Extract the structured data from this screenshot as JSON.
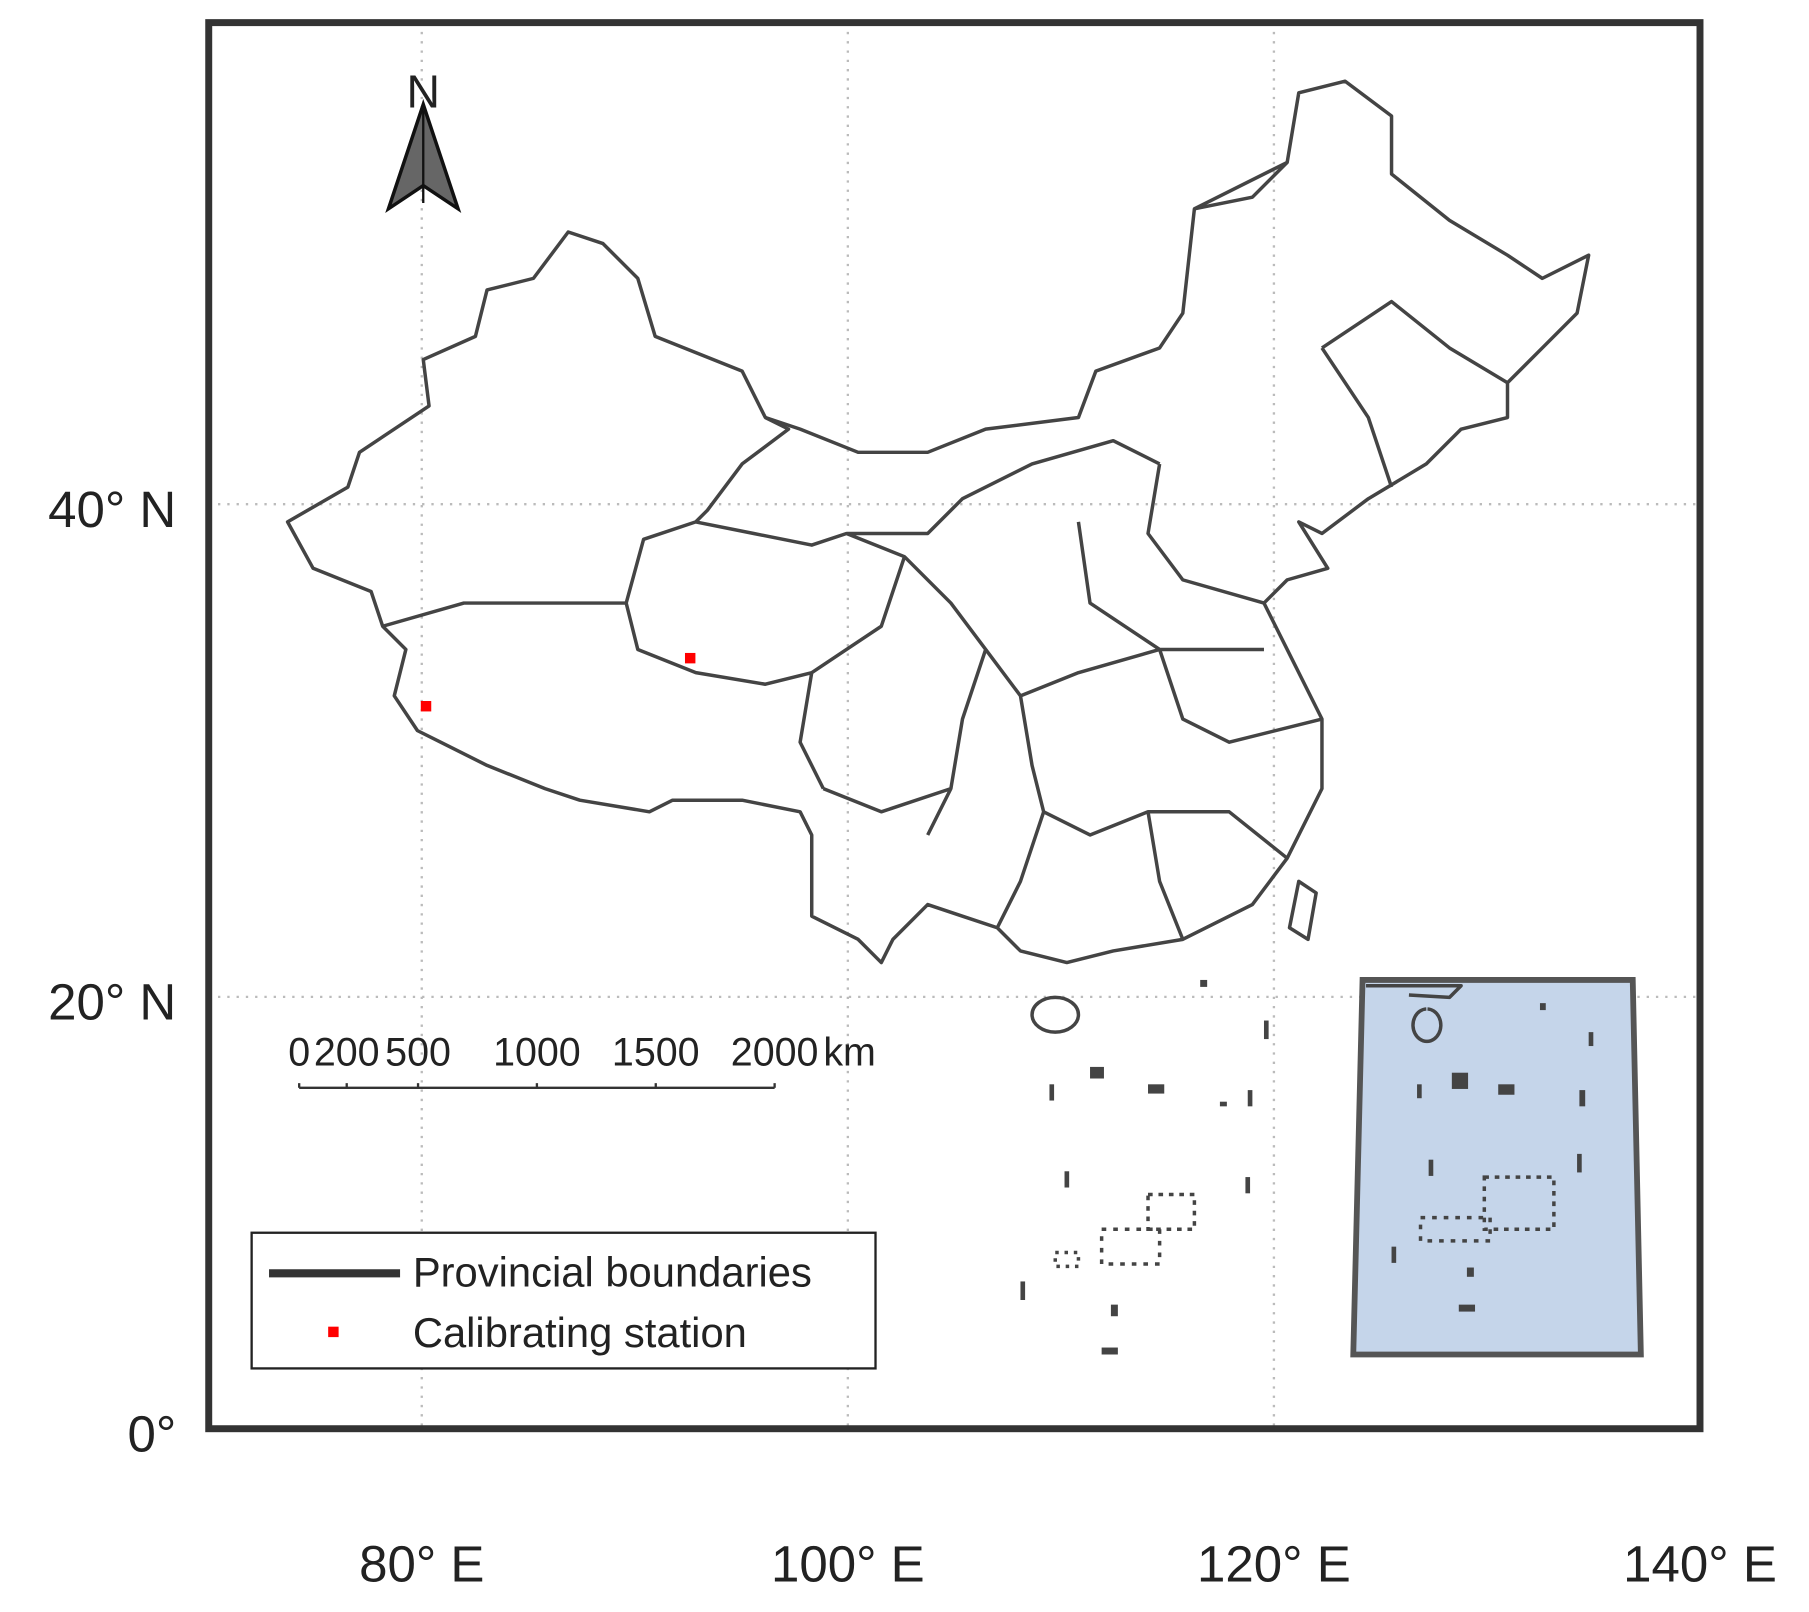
{
  "map": {
    "xlim": [
      70,
      140
    ],
    "ylim": [
      0,
      55.2
    ],
    "xticks": [
      {
        "value": 80,
        "label": "80° E"
      },
      {
        "value": 100,
        "label": "100° E"
      },
      {
        "value": 120,
        "label": "120° E"
      },
      {
        "value": 140,
        "label": "140° E"
      }
    ],
    "yticks": [
      {
        "value": 40,
        "label": "40° N"
      },
      {
        "value": 20,
        "label": "20° N"
      },
      {
        "value": 0,
        "label": "0°"
      }
    ],
    "grid": true,
    "north_label": "N",
    "scale_bar": {
      "ticks": [
        0,
        200,
        500,
        1000,
        1500,
        2000
      ],
      "unit": "km"
    },
    "stations": [
      {
        "lon": 80.2,
        "lat": 32.3
      },
      {
        "lon": 92.6,
        "lat": 34.2
      }
    ],
    "station_color": "#ff0000",
    "legend": [
      "Provincial boundaries",
      "Calibrating station"
    ]
  }
}
